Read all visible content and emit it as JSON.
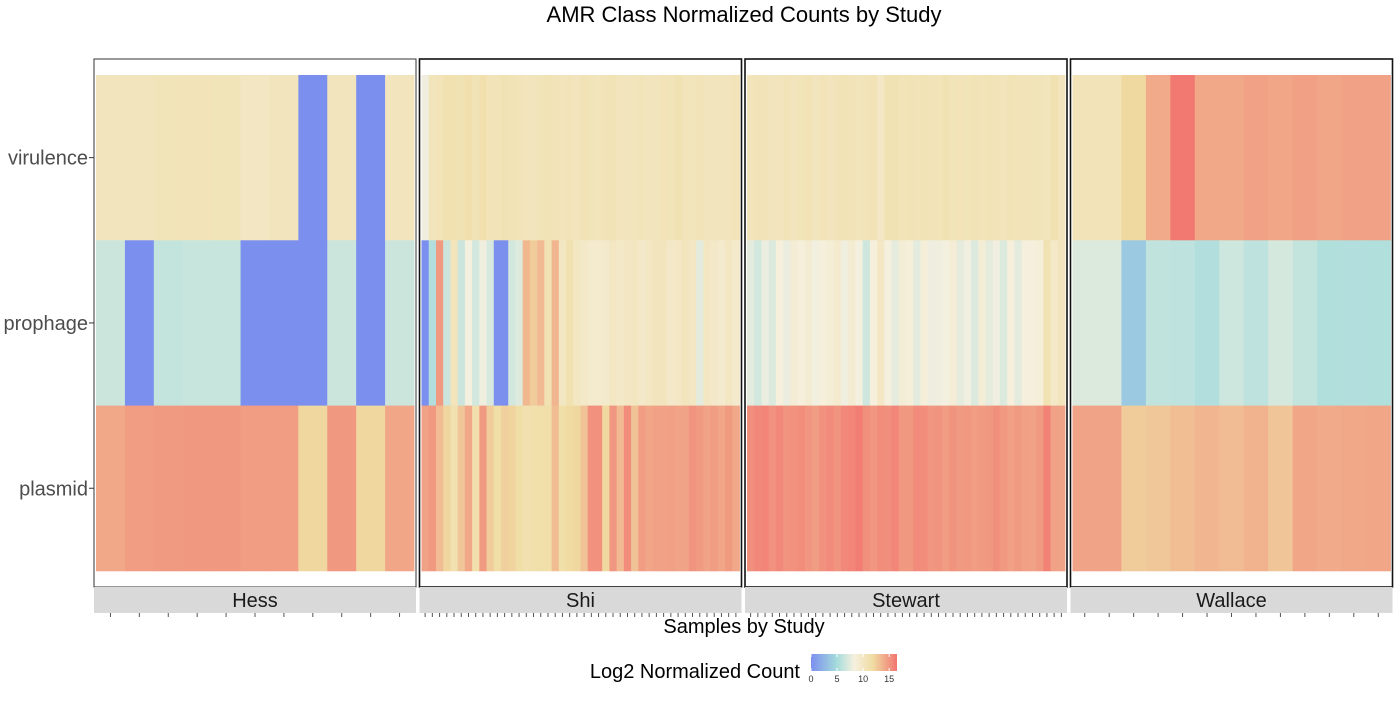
{
  "chart_data": {
    "type": "heatmap",
    "title": "AMR Class Normalized Counts by Study",
    "xlabel": "Samples by Study",
    "ylabel": "",
    "rows": [
      "virulence",
      "prophage",
      "plasmid"
    ],
    "color_scale": {
      "title": "Log2 Normalized Count",
      "ticks": [
        0,
        5,
        10,
        15
      ],
      "range": [
        0,
        16.5
      ],
      "colors": [
        "#7b8fee",
        "#a5dcdc",
        "#f5f0df",
        "#f0dca2",
        "#f27470"
      ],
      "stops": [
        0,
        0.3,
        0.5,
        0.72,
        1
      ],
      "accent": "#7b8fee"
    },
    "panels": [
      {
        "name": "Hess",
        "values": {
          "virulence": [
            10.2,
            10.2,
            10.5,
            10.6,
            10.5,
            10.0,
            10.3,
            0,
            10.3,
            0,
            10.2
          ],
          "prophage": [
            6.5,
            0,
            6.2,
            6.4,
            6.4,
            0,
            0,
            0,
            6.5,
            0,
            6.5
          ],
          "plasmid": [
            14.2,
            14.7,
            14.8,
            14.9,
            14.9,
            14.7,
            14.7,
            12.1,
            14.9,
            12.1,
            14.3
          ]
        }
      },
      {
        "name": "Shi",
        "values": {
          "virulence": [
            8.0,
            10.4,
            10.6,
            11.0,
            11.0,
            10.8,
            11.2,
            10.7,
            11.2,
            10.6,
            10.6,
            10.8,
            10.7,
            10.6,
            10.4,
            10.3,
            10.5,
            10.8,
            10.6,
            10.4,
            10.6,
            10.3,
            10.7,
            10.5,
            10.4,
            10.6,
            10.7,
            10.3,
            10.3,
            10.4,
            10.5,
            10.3,
            10.2,
            10.6,
            10.5,
            10.8,
            10.4,
            10.4,
            10.6,
            10.3,
            10.4,
            10.3,
            10.2,
            10.6
          ],
          "prophage": [
            0,
            5.5,
            14.8,
            6.5,
            10.4,
            6.5,
            8.2,
            6.8,
            8.0,
            7.0,
            0,
            0,
            6.8,
            7.3,
            13.5,
            12.6,
            13.4,
            10.8,
            13.6,
            10.0,
            11.0,
            9.9,
            9.6,
            9.3,
            9.3,
            9.4,
            10.0,
            9.6,
            9.9,
            10.1,
            9.5,
            10.0,
            10.3,
            10.2,
            9.5,
            9.8,
            10.3,
            10.0,
            7.5,
            9.9,
            9.7,
            9.3,
            9.9,
            9.4
          ],
          "plasmid": [
            14.5,
            14.9,
            13.3,
            12.2,
            11.0,
            12.9,
            14.2,
            11.3,
            14.8,
            12.6,
            11.6,
            12.4,
            12.3,
            11.6,
            11.0,
            11.3,
            11.4,
            11.4,
            13.2,
            11.4,
            11.9,
            12.1,
            13.0,
            15.2,
            15.2,
            12.0,
            15.0,
            13.4,
            15.4,
            13.0,
            14.7,
            14.3,
            14.5,
            14.5,
            14.6,
            14.4,
            14.4,
            15.1,
            14.8,
            14.4,
            14.7,
            14.3,
            14.8,
            14.2
          ]
        }
      },
      {
        "name": "Stewart",
        "values": {
          "virulence": [
            10.4,
            10.6,
            10.5,
            10.3,
            10.3,
            10.6,
            10.3,
            10.5,
            10.7,
            10.3,
            10.6,
            10.3,
            10.6,
            10.7,
            10.6,
            10.4,
            10.5,
            10.7,
            9.8,
            10.8,
            10.8,
            10.6,
            10.7,
            10.6,
            10.7,
            10.5,
            10.6,
            10.8,
            10.5,
            10.6,
            10.5,
            10.7,
            10.5,
            10.7,
            10.6,
            10.4,
            10.7,
            10.5,
            10.6,
            10.5,
            10.5,
            10.4,
            11.0,
            10.3
          ],
          "prophage": [
            7.5,
            6.8,
            7.8,
            7.2,
            8.4,
            7.8,
            8.9,
            8.4,
            9.0,
            8.1,
            8.5,
            8.7,
            9.2,
            8.0,
            9.0,
            8.2,
            6.6,
            8.5,
            9.8,
            8.3,
            7.6,
            8.8,
            8.6,
            7.5,
            8.6,
            7.9,
            8.0,
            8.2,
            8.9,
            7.6,
            8.1,
            7.2,
            8.8,
            7.6,
            8.0,
            7.2,
            8.4,
            7.5,
            8.3,
            8.4,
            8.6,
            10.8,
            9.6,
            10.2
          ],
          "plasmid": [
            15.3,
            15.6,
            15.8,
            15.2,
            15.6,
            15.1,
            15.2,
            15.4,
            15.0,
            14.7,
            15.2,
            15.5,
            15.1,
            15.6,
            15.8,
            16.1,
            15.3,
            15.0,
            15.4,
            15.3,
            15.7,
            14.9,
            14.9,
            15.5,
            15.4,
            15.0,
            15.1,
            14.7,
            15.1,
            14.8,
            14.9,
            14.7,
            14.8,
            14.9,
            15.3,
            14.9,
            14.6,
            14.8,
            14.6,
            14.5,
            14.8,
            15.9,
            14.5,
            14.4
          ]
        }
      },
      {
        "name": "Wallace",
        "values": {
          "virulence": [
            10.6,
            10.6,
            12.0,
            14.1,
            16.3,
            14.2,
            14.2,
            14.5,
            14.3,
            14.6,
            14.3,
            14.5,
            14.5
          ],
          "prophage": [
            7.2,
            7.2,
            3.7,
            6.1,
            6.0,
            5.5,
            6.6,
            6.0,
            6.9,
            6.2,
            5.4,
            5.5,
            5.4
          ],
          "plasmid": [
            14.4,
            14.4,
            12.6,
            12.8,
            13.2,
            13.6,
            13.3,
            13.7,
            12.9,
            14.3,
            14.1,
            14.2,
            14.3
          ]
        }
      }
    ]
  }
}
